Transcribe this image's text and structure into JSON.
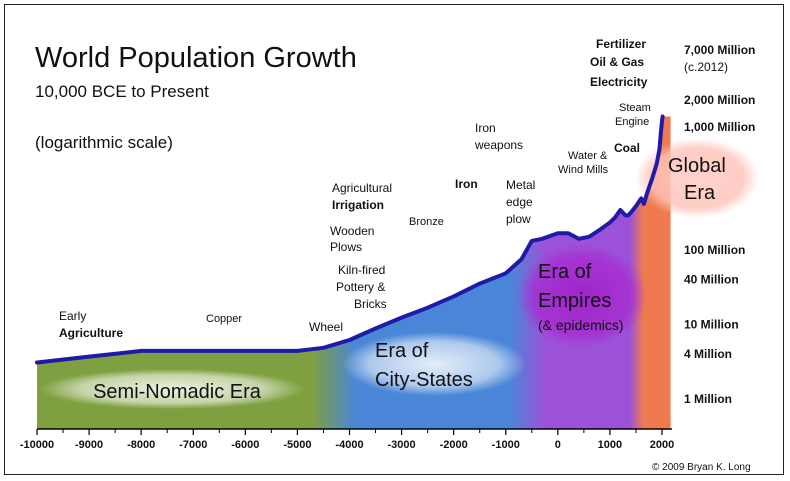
{
  "chart_data": {
    "type": "area",
    "title": "World Population Growth",
    "subtitle": "10,000 BCE to Present",
    "scale_note": "(logarithmic scale)",
    "copyright": "© 2009 Bryan K. Long",
    "y_scale": "log",
    "x_ticks": [
      "-10000",
      "-9000",
      "-8000",
      "-7000",
      "-6000",
      "-5000",
      "-4000",
      "-3000",
      "-2000",
      "-1000",
      "0",
      "1000",
      "2000"
    ],
    "y_labels": [
      {
        "value": 7000,
        "line1": "7,000 Million",
        "line2": "(c.2012)"
      },
      {
        "value": 2000,
        "line1": "2,000 Million"
      },
      {
        "value": 1000,
        "line1": "1,000 Million"
      },
      {
        "value": 100,
        "line1": "100 Million"
      },
      {
        "value": 40,
        "line1": "40 Million"
      },
      {
        "value": 10,
        "line1": "10 Million"
      },
      {
        "value": 4,
        "line1": "4 Million"
      },
      {
        "value": 1,
        "line1": "1 Million"
      }
    ],
    "series": [
      {
        "x": [
          -10000,
          -9000,
          -8000,
          -7000,
          -6000,
          -5000,
          -4500,
          -4000,
          -3500,
          -3000,
          -2500,
          -2000,
          -1500,
          -1000,
          -700,
          -500,
          -300,
          0,
          200,
          400,
          600,
          800,
          1000,
          1100,
          1200,
          1300,
          1350,
          1400,
          1500,
          1600,
          1650,
          1700,
          1750,
          1800,
          1850,
          1900,
          1950,
          1980,
          2000,
          2012
        ],
        "y": [
          3.5,
          4.2,
          5,
          5,
          5,
          5,
          5.5,
          7,
          10,
          14,
          19,
          27,
          40,
          55,
          85,
          150,
          160,
          190,
          190,
          160,
          170,
          210,
          265,
          310,
          390,
          330,
          330,
          360,
          440,
          560,
          470,
          610,
          780,
          980,
          1260,
          1650,
          2520,
          4450,
          6100,
          7000
        ]
      }
    ],
    "eras": [
      {
        "name": "Semi-Nomadic Era",
        "start": -10000,
        "end": -4300,
        "color": "#7fa040"
      },
      {
        "name": "Era of City-States",
        "start": -4300,
        "end": -500,
        "color": "#4a86d8"
      },
      {
        "name": "Era of Empires",
        "line2": "(& epidemics)",
        "start": -500,
        "end": 1500,
        "color": "#9b52d9"
      },
      {
        "name": "Global Era",
        "start": 1500,
        "end": 2012,
        "color": "#f07a50"
      }
    ],
    "annotations": [
      {
        "text": "Early",
        "bold": false
      },
      {
        "text": "Agriculture",
        "bold": true
      },
      {
        "text": "Copper",
        "bold": false
      },
      {
        "text": "Wheel",
        "bold": false
      },
      {
        "text": "Kiln-fired",
        "bold": false
      },
      {
        "text": "Pottery &",
        "bold": false
      },
      {
        "text": "Bricks",
        "bold": false
      },
      {
        "text": "Wooden",
        "bold": false
      },
      {
        "text": "Plows",
        "bold": false
      },
      {
        "text": "Agricultural",
        "bold": false
      },
      {
        "text": "Irrigation",
        "bold": true
      },
      {
        "text": "Bronze",
        "bold": false
      },
      {
        "text": "Iron",
        "bold": true
      },
      {
        "text": "Iron",
        "bold": false
      },
      {
        "text": "weapons",
        "bold": false
      },
      {
        "text": "Metal",
        "bold": false
      },
      {
        "text": "edge",
        "bold": false
      },
      {
        "text": "plow",
        "bold": false
      },
      {
        "text": "Water &",
        "bold": false
      },
      {
        "text": "Wind Mills",
        "bold": false
      },
      {
        "text": "Coal",
        "bold": true
      },
      {
        "text": "Steam",
        "bold": false
      },
      {
        "text": "Engine",
        "bold": false
      },
      {
        "text": "Fertilizer",
        "bold": true
      },
      {
        "text": "Oil & Gas",
        "bold": true
      },
      {
        "text": "Electricity",
        "bold": true
      }
    ]
  }
}
